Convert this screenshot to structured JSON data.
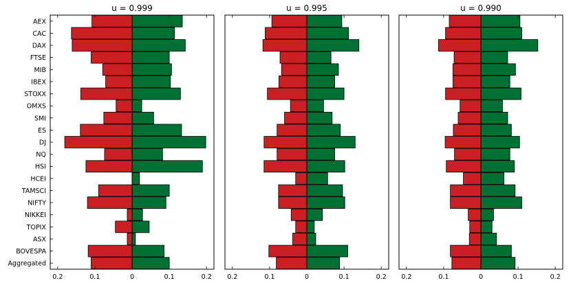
{
  "chart_data": {
    "type": "bar",
    "orientation": "horizontal-diverging",
    "categories": [
      "AEX",
      "CAC",
      "DAX",
      "FTSE",
      "MIB",
      "IBEX",
      "STOXX",
      "OMXS",
      "SMI",
      "ES",
      "DJ",
      "NQ",
      "HSI",
      "HCEI",
      "TAMSCI",
      "NIFTY",
      "NIKKEI",
      "TOPIX",
      "ASX",
      "BOVESPA",
      "Aggregated"
    ],
    "x_ticks": [
      {
        "value": -0.2,
        "label": "0.2"
      },
      {
        "value": -0.1,
        "label": "0.1"
      },
      {
        "value": 0,
        "label": "0"
      },
      {
        "value": 0.1,
        "label": "0.1"
      },
      {
        "value": 0.2,
        "label": "0.2"
      }
    ],
    "xlim": [
      -0.22,
      0.22
    ],
    "colors": {
      "negative": "#cc1f24",
      "positive": "#007132"
    },
    "panels": [
      {
        "title": "u = 0.999",
        "negative": [
          0.108,
          0.163,
          0.161,
          0.11,
          0.079,
          0.071,
          0.138,
          0.043,
          0.076,
          0.139,
          0.181,
          0.074,
          0.124,
          0.0,
          0.09,
          0.12,
          0.013,
          0.045,
          0.013,
          0.118,
          0.11
        ],
        "positive": [
          0.135,
          0.114,
          0.143,
          0.1,
          0.106,
          0.103,
          0.13,
          0.026,
          0.058,
          0.133,
          0.198,
          0.082,
          0.189,
          0.02,
          0.1,
          0.091,
          0.028,
          0.046,
          0.009,
          0.086,
          0.1
        ]
      },
      {
        "title": "u = 0.995",
        "negative": [
          0.094,
          0.112,
          0.118,
          0.072,
          0.068,
          0.075,
          0.106,
          0.044,
          0.06,
          0.08,
          0.115,
          0.08,
          0.115,
          0.03,
          0.076,
          0.076,
          0.042,
          0.03,
          0.038,
          0.102,
          0.082
        ],
        "positive": [
          0.094,
          0.112,
          0.14,
          0.065,
          0.085,
          0.075,
          0.1,
          0.045,
          0.068,
          0.09,
          0.13,
          0.075,
          0.102,
          0.056,
          0.096,
          0.102,
          0.042,
          0.02,
          0.024,
          0.11,
          0.088
        ]
      },
      {
        "title": "u = 0.990",
        "negative": [
          0.085,
          0.095,
          0.114,
          0.072,
          0.075,
          0.075,
          0.095,
          0.056,
          0.061,
          0.074,
          0.096,
          0.071,
          0.093,
          0.047,
          0.082,
          0.082,
          0.034,
          0.03,
          0.031,
          0.082,
          0.078
        ],
        "positive": [
          0.105,
          0.11,
          0.153,
          0.072,
          0.093,
          0.078,
          0.108,
          0.058,
          0.072,
          0.082,
          0.104,
          0.078,
          0.09,
          0.062,
          0.092,
          0.11,
          0.034,
          0.03,
          0.042,
          0.082,
          0.092
        ]
      }
    ]
  }
}
